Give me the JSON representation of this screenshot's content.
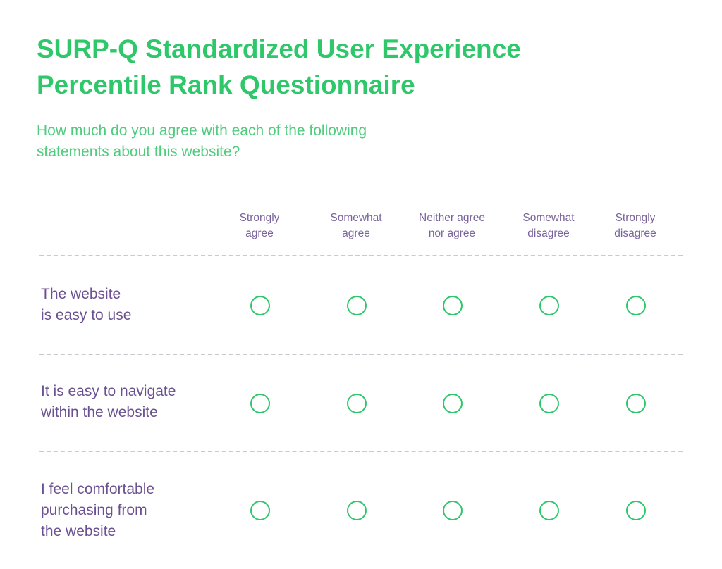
{
  "survey": {
    "title_lines": [
      "SURP-Q Standardized User Experience",
      "Percentile Rank Questionnaire"
    ],
    "subtitle_lines": [
      "How much do you agree with each of the following",
      "statements about this website?"
    ],
    "scale": [
      {
        "id": "strongly-agree",
        "lines": [
          "Strongly",
          "agree"
        ]
      },
      {
        "id": "somewhat-agree",
        "lines": [
          "Somewhat",
          "agree"
        ]
      },
      {
        "id": "neither",
        "lines": [
          "Neither agree",
          "nor agree"
        ]
      },
      {
        "id": "somewhat-disagree",
        "lines": [
          "Somewhat",
          "disagree"
        ]
      },
      {
        "id": "strongly-disagree",
        "lines": [
          "Strongly",
          "disagree"
        ]
      }
    ],
    "statements": [
      {
        "id": "easy-to-use",
        "lines": [
          "The website",
          "is easy to use"
        ]
      },
      {
        "id": "easy-to-navigate",
        "lines": [
          "It is easy to navigate",
          "within the website"
        ]
      },
      {
        "id": "comfortable-purchasing",
        "lines": [
          "I feel comfortable",
          "purchasing from",
          "the website"
        ]
      }
    ]
  },
  "colors": {
    "title": "#2ec76a",
    "subtitle": "#4fcc7e",
    "label": "#6b5191",
    "header": "#7a639c",
    "radio_border": "#2ec76a",
    "divider": "#c9c9cf"
  }
}
